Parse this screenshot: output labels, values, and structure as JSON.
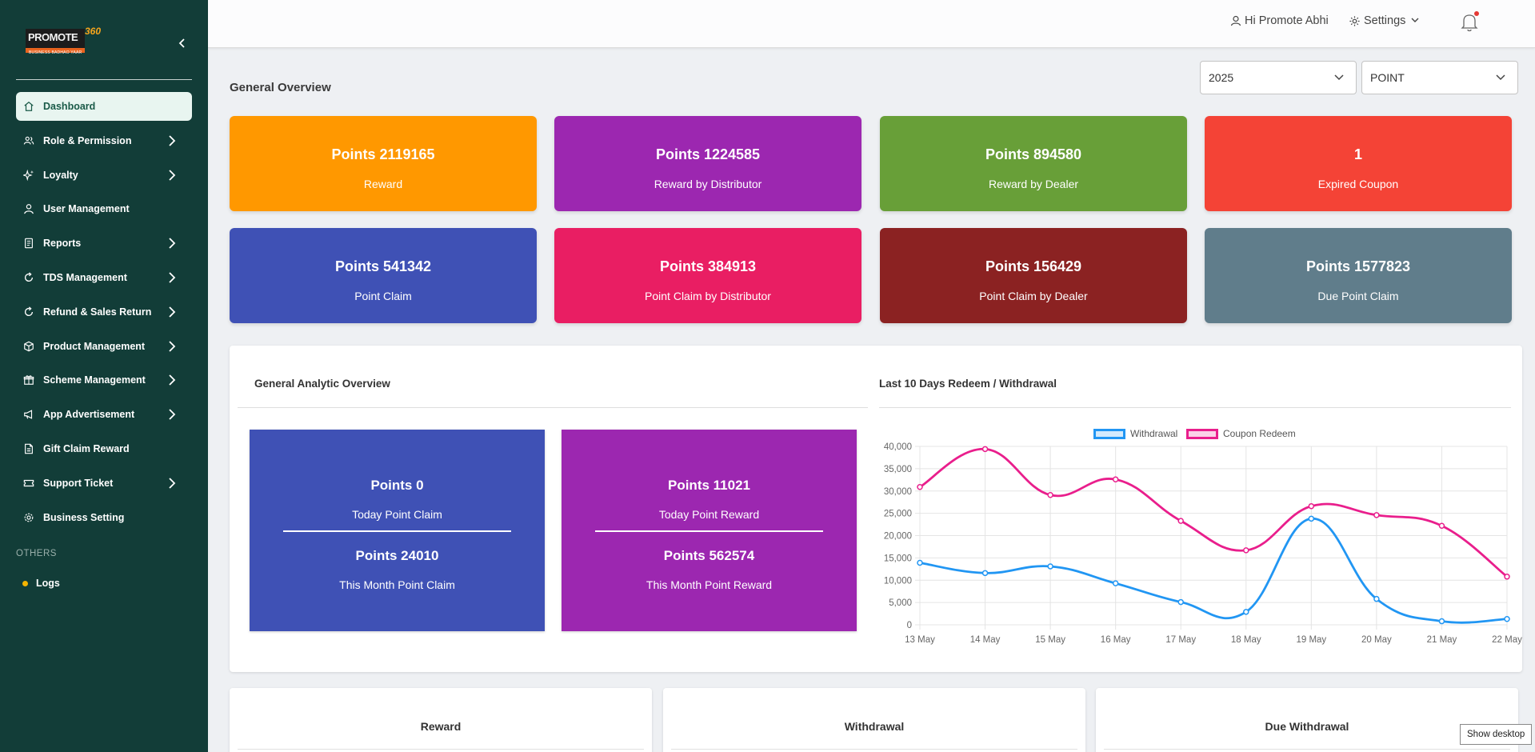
{
  "sidebar": {
    "logo": {
      "text": "PROMOTE",
      "number": "360",
      "tagline": "BUSINESS BADHAO YAAR"
    },
    "items": [
      {
        "label": "Dashboard",
        "icon": "home-icon",
        "active": true,
        "has_arrow": false
      },
      {
        "label": "Role & Permission",
        "icon": "users-icon",
        "has_arrow": true
      },
      {
        "label": "Loyalty",
        "icon": "sparkle-icon",
        "has_arrow": true
      },
      {
        "label": "User Management",
        "icon": "user-icon",
        "has_arrow": false
      },
      {
        "label": "Reports",
        "icon": "report-icon",
        "has_arrow": true
      },
      {
        "label": "TDS Management",
        "icon": "refresh-icon",
        "has_arrow": true
      },
      {
        "label": "Refund & Sales Return",
        "icon": "refresh-icon",
        "has_arrow": true
      },
      {
        "label": "Product Management",
        "icon": "box-icon",
        "has_arrow": true
      },
      {
        "label": "Scheme Management",
        "icon": "gift-icon",
        "has_arrow": true
      },
      {
        "label": "App Advertisement",
        "icon": "megaphone-icon",
        "has_arrow": true
      },
      {
        "label": "Gift Claim Reward",
        "icon": "document-icon",
        "has_arrow": false
      },
      {
        "label": "Support Ticket",
        "icon": "ticket-icon",
        "has_arrow": true
      },
      {
        "label": "Business Setting",
        "icon": "gear-icon",
        "has_arrow": false
      }
    ],
    "others_label": "OTHERS",
    "logs_label": "Logs"
  },
  "topbar": {
    "greeting": "Hi Promote Abhi",
    "settings_label": "Settings"
  },
  "header": {
    "title": "General Overview",
    "year_select": "2025",
    "type_select": "POINT"
  },
  "cards": [
    {
      "value": "Points 2119165",
      "label": "Reward",
      "color": "#ff9800"
    },
    {
      "value": "Points 1224585",
      "label": "Reward by Distributor",
      "color": "#9c27b0"
    },
    {
      "value": "Points 894580",
      "label": "Reward by Dealer",
      "color": "#689f38"
    },
    {
      "value": "1",
      "label": "Expired Coupon",
      "color": "#f44336"
    },
    {
      "value": "Points 541342",
      "label": "Point Claim",
      "color": "#3f51b5"
    },
    {
      "value": "Points 384913",
      "label": "Point Claim by Distributor",
      "color": "#e91e63"
    },
    {
      "value": "Points 156429",
      "label": "Point Claim by Dealer",
      "color": "#8b2222"
    },
    {
      "value": "Points 1577823",
      "label": "Due Point Claim",
      "color": "#607d8b"
    }
  ],
  "analytics": {
    "title": "General Analytic Overview",
    "claim": {
      "today_value": "Points 0",
      "today_label": "Today Point Claim",
      "month_value": "Points 24010",
      "month_label": "This Month Point Claim",
      "color": "#3f51b5"
    },
    "reward": {
      "today_value": "Points 11021",
      "today_label": "Today Point Reward",
      "month_value": "Points 562574",
      "month_label": "This Month Point Reward",
      "color": "#9c27b0"
    }
  },
  "redeem_title": "Last 10 Days Redeem / Withdrawal",
  "chart_data": {
    "type": "line",
    "title": "",
    "categories": [
      "13 May",
      "14 May",
      "15 May",
      "16 May",
      "17 May",
      "18 May",
      "19 May",
      "20 May",
      "21 May",
      "22 May"
    ],
    "ylim": [
      0,
      40000
    ],
    "yticks": [
      "0",
      "5,000",
      "10,000",
      "15,000",
      "20,000",
      "25,000",
      "30,000",
      "35,000",
      "40,000"
    ],
    "grid": true,
    "legend": "top",
    "series": [
      {
        "name": "Withdrawal",
        "color": "#2196f3",
        "values": [
          13900,
          11600,
          13100,
          9300,
          5100,
          2900,
          23800,
          5800,
          800,
          1300
        ]
      },
      {
        "name": "Coupon Redeem",
        "color": "#e91e8c",
        "values": [
          30900,
          39400,
          29100,
          32600,
          23300,
          16700,
          26600,
          24600,
          22200,
          10800
        ]
      }
    ]
  },
  "bottom": [
    "Reward",
    "Withdrawal",
    "Due Withdrawal"
  ],
  "tooltip": "Show desktop"
}
